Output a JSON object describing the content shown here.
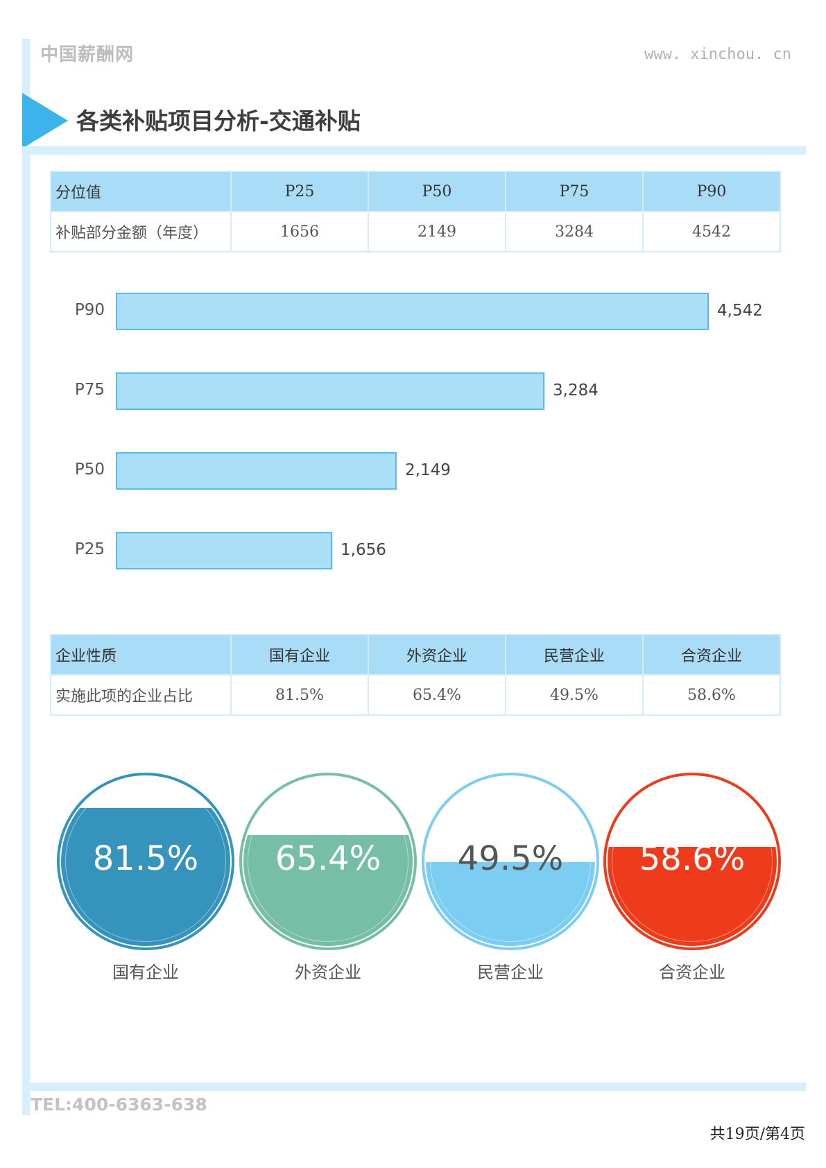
{
  "header": {
    "brand": "中国薪酬网",
    "url": "www. xinchou. cn"
  },
  "title": "各类补贴项目分析-交通补贴",
  "percentile_table": {
    "headers": [
      "分位值",
      "P25",
      "P50",
      "P75",
      "P90"
    ],
    "row": [
      "补贴部分金额（年度）",
      "1656",
      "2149",
      "3284",
      "4542"
    ]
  },
  "chart_data": {
    "type": "bar",
    "orientation": "horizontal",
    "categories": [
      "P90",
      "P75",
      "P50",
      "P25"
    ],
    "values": [
      4542,
      3284,
      2149,
      1656
    ],
    "value_labels": [
      "4,542",
      "3,284",
      "2,149",
      "1,656"
    ],
    "xlim": [
      0,
      5000
    ],
    "colors": {
      "fill": "#aadff7",
      "stroke": "#56bde9"
    }
  },
  "enterprise_table": {
    "headers": [
      "企业性质",
      "国有企业",
      "外资企业",
      "民营企业",
      "合资企业"
    ],
    "row": [
      "实施此项的企业占比",
      "81.5%",
      "65.4%",
      "49.5%",
      "58.6%"
    ]
  },
  "gauges": [
    {
      "label": "国有企业",
      "value_text": "81.5%",
      "fraction": 0.815,
      "color": "#3593bc",
      "text_color": "#ffffff"
    },
    {
      "label": "外资企业",
      "value_text": "65.4%",
      "fraction": 0.654,
      "color": "#76bea5",
      "text_color": "#ffffff"
    },
    {
      "label": "民营企业",
      "value_text": "49.5%",
      "fraction": 0.495,
      "color": "#7bcdf2",
      "text_color": "#555555"
    },
    {
      "label": "合资企业",
      "value_text": "58.6%",
      "fraction": 0.586,
      "color": "#ee3b1b",
      "text_color": "#ffffff"
    }
  ],
  "footer": {
    "tel": "TEL:400-6363-638",
    "page": "共19页/第4页"
  }
}
